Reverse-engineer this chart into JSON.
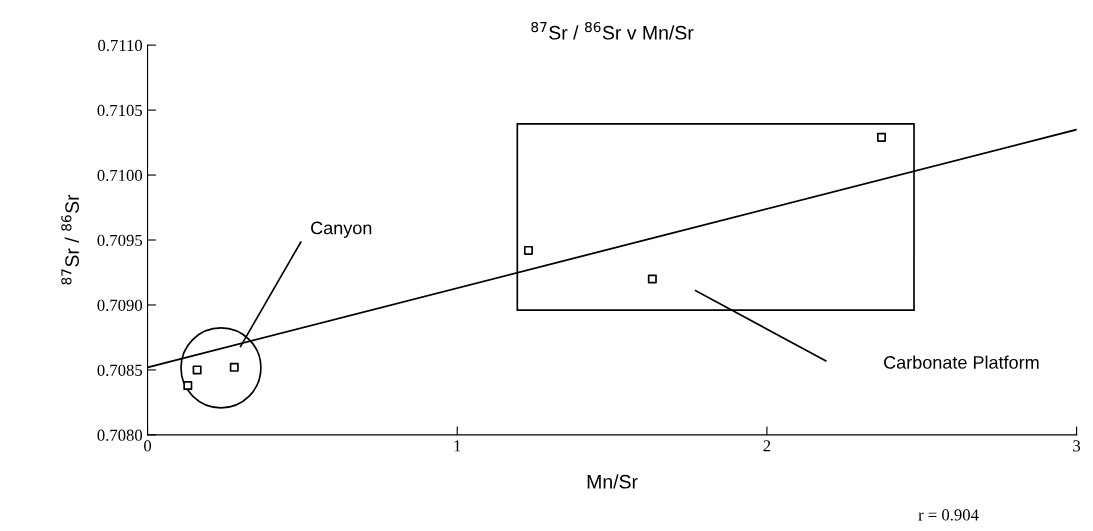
{
  "chart_data": {
    "type": "scatter",
    "title": "$^{87}$Sr / $^{86}$Sr v Mn/Sr",
    "xlabel": "Mn/Sr",
    "ylabel": "$^{87}$Sr / $^{86}$Sr",
    "xlim": [
      0,
      3
    ],
    "xticks": [
      0,
      1,
      2,
      3
    ],
    "ylim": [
      0.708,
      0.711
    ],
    "yticks": [
      {
        "value": 0.708,
        "label": "0.7080"
      },
      {
        "value": 0.7085,
        "label": "0.7085"
      },
      {
        "value": 0.709,
        "label": "0.7090"
      },
      {
        "value": 0.7095,
        "label": "0.7095"
      },
      {
        "value": 0.71,
        "label": "0.7100"
      },
      {
        "value": 0.7105,
        "label": "0.7105"
      },
      {
        "value": 0.711,
        "label": "0.7110"
      }
    ],
    "series": [
      {
        "color": "#000000",
        "marker": "square",
        "x": [
          0.13,
          0.16,
          0.28,
          1.23,
          1.63,
          2.37
        ],
        "values": [
          0.70838,
          0.7085,
          0.70852,
          0.70942,
          0.7092,
          0.71029
        ]
      },
      {
        "type": "line",
        "color": "#000000",
        "marker": "none",
        "line_style": "solid",
        "x": [
          0,
          3
        ],
        "values": [
          0.70852,
          0.71035
        ]
      }
    ],
    "annotations": [
      {
        "text": "Canyon",
        "x": 0.3,
        "y": 0.70868
      },
      "Carbonate Platform",
      "r = 0.904"
    ],
    "grid": false
  }
}
